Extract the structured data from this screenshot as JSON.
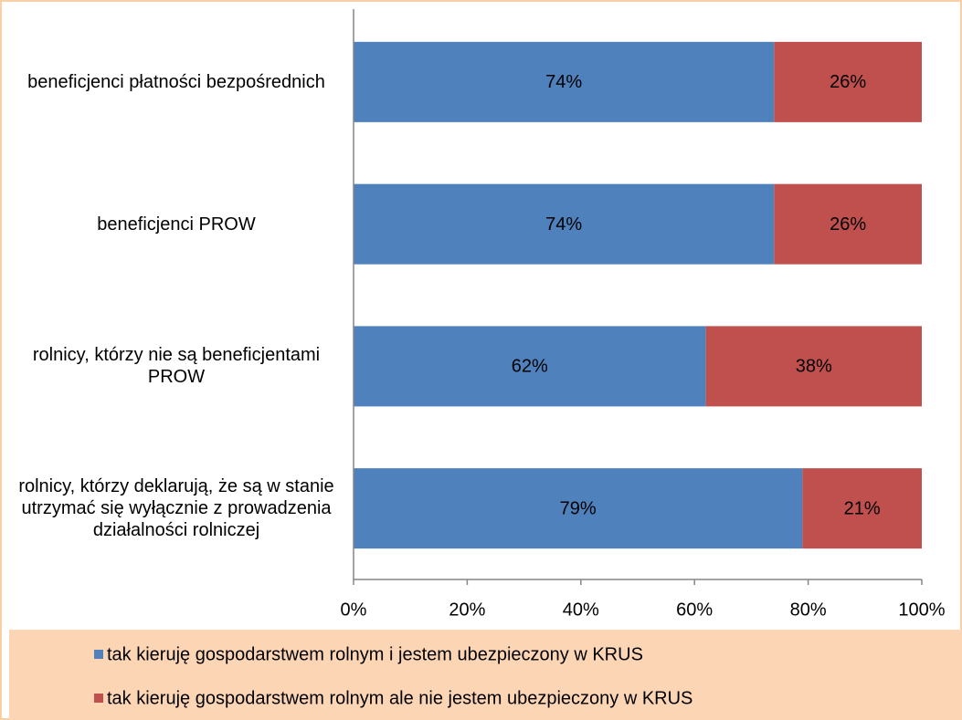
{
  "chart_data": {
    "type": "stacked_barh",
    "categories": [
      "beneficjenci płatności bezpośrednich",
      "beneficjenci PROW",
      "rolnicy, którzy nie są beneficjentami PROW",
      "rolnicy, którzy deklarują, że są w stanie utrzymać się wyłącznie z prowadzenia działalności rolniczej"
    ],
    "series": [
      {
        "name": "tak kieruję gospodarstwem rolnym i jestem ubezpieczony w KRUS",
        "color": "#4f81bd",
        "values": [
          74,
          74,
          62,
          79
        ],
        "value_labels": [
          "74%",
          "74%",
          "62%",
          "79%"
        ]
      },
      {
        "name": "tak kieruję gospodarstwem rolnym ale nie jestem ubezpieczony w KRUS",
        "color": "#c0504d",
        "values": [
          26,
          26,
          38,
          21
        ],
        "value_labels": [
          "26%",
          "26%",
          "38%",
          "21%"
        ]
      }
    ],
    "xlim": [
      0,
      100
    ],
    "xticks": [
      {
        "value": 0,
        "label": "0%"
      },
      {
        "value": 20,
        "label": "20%"
      },
      {
        "value": 40,
        "label": "40%"
      },
      {
        "value": 60,
        "label": "60%"
      },
      {
        "value": 80,
        "label": "80%"
      },
      {
        "value": 100,
        "label": "100%"
      }
    ],
    "legend": "bottom"
  }
}
